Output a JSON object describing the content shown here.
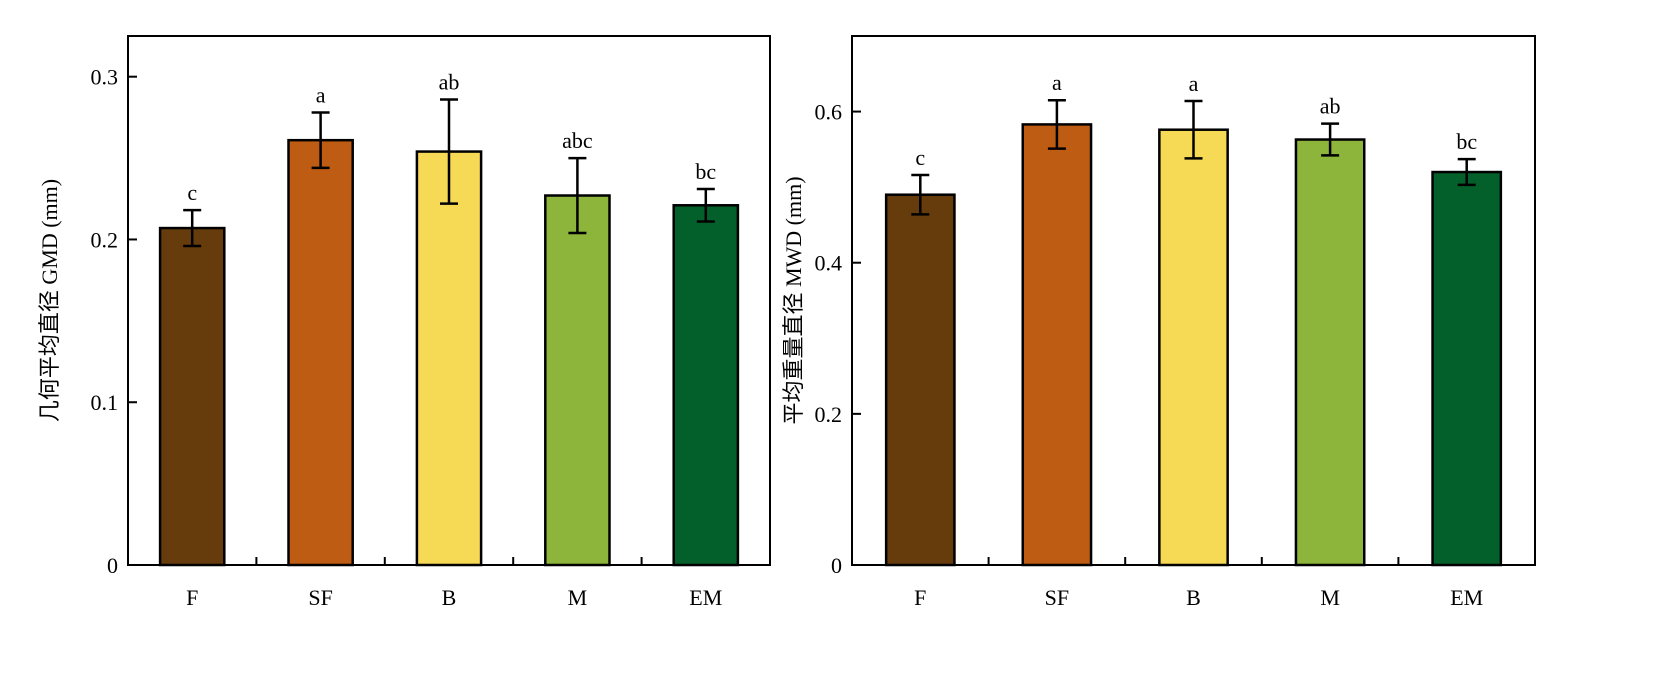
{
  "chart_data": [
    {
      "type": "bar",
      "categories": [
        "F",
        "SF",
        "B",
        "M",
        "EM"
      ],
      "values": [
        0.207,
        0.261,
        0.254,
        0.227,
        0.221
      ],
      "errors": [
        0.011,
        0.017,
        0.032,
        0.023,
        0.01
      ],
      "annotations": [
        "c",
        "a",
        "ab",
        "abc",
        "bc"
      ],
      "colors": [
        "#673c0c",
        "#bd5c12",
        "#f6d955",
        "#8db43b",
        "#04602b"
      ],
      "ylabel": "几何平均直径 GMD (mm)",
      "ylim": [
        0,
        0.325
      ],
      "yticks": [
        0,
        0.1,
        0.2,
        0.3
      ],
      "ytick_labels": [
        "0",
        "0.1",
        "0.2",
        "0.3"
      ],
      "grid": false
    },
    {
      "type": "bar",
      "categories": [
        "F",
        "SF",
        "B",
        "M",
        "EM"
      ],
      "values": [
        0.49,
        0.583,
        0.576,
        0.563,
        0.52
      ],
      "errors": [
        0.026,
        0.032,
        0.038,
        0.021,
        0.017
      ],
      "annotations": [
        "c",
        "a",
        "a",
        "ab",
        "bc"
      ],
      "colors": [
        "#673c0c",
        "#bd5c12",
        "#f6d955",
        "#8db43b",
        "#04602b"
      ],
      "ylabel": "平均重量直径 MWD (mm)",
      "ylim": [
        0,
        0.7
      ],
      "yticks": [
        0,
        0.2,
        0.4,
        0.6
      ],
      "ytick_labels": [
        "0",
        "0.2",
        "0.4",
        "0.6"
      ],
      "grid": false
    }
  ]
}
